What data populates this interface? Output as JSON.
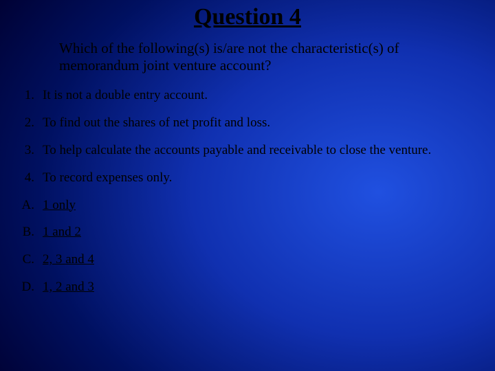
{
  "title": "Question 4",
  "question": "Which of the following(s) is/are not the characteristic(s) of memorandum joint venture account?",
  "numbered": [
    {
      "marker": "1.",
      "text": "It is not a double entry account."
    },
    {
      "marker": "2.",
      "text": "To find out the shares of net profit and loss."
    },
    {
      "marker": "3.",
      "text": "To help calculate the accounts payable and receivable to  close the venture."
    },
    {
      "marker": "4.",
      "text": "To record expenses only."
    }
  ],
  "lettered": [
    {
      "marker": "A.",
      "text": "1 only"
    },
    {
      "marker": "B.",
      "text": "1 and 2"
    },
    {
      "marker": "C.",
      "text": "2, 3 and 4"
    },
    {
      "marker": "D.",
      "text": "1, 2 and 3"
    }
  ],
  "colors": {
    "text": "#000000",
    "background_center": "#2050e0",
    "background_edge": "#000000"
  },
  "typography": {
    "font_family": "Times New Roman",
    "title_fontsize": 34,
    "question_fontsize": 21,
    "list_fontsize": 19
  }
}
